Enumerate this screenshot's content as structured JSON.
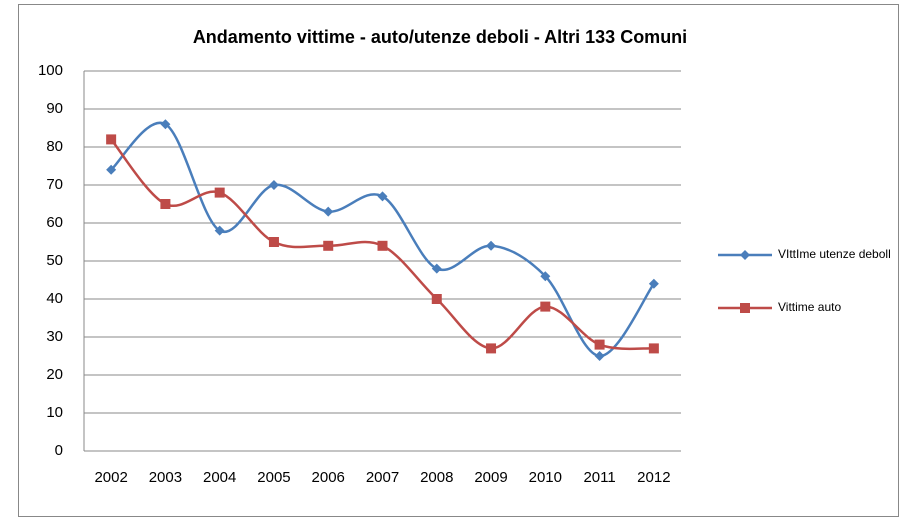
{
  "chart_data": {
    "type": "line",
    "title": "Andamento vittime - auto/utenze deboli - Altri 133 Comuni",
    "categories": [
      "2002",
      "2003",
      "2004",
      "2005",
      "2006",
      "2007",
      "2008",
      "2009",
      "2010",
      "2011",
      "2012"
    ],
    "series": [
      {
        "name": "VIttIme utenze deboll",
        "color": "#4a7ebb",
        "marker": "diamond",
        "values": [
          74,
          86,
          58,
          70,
          63,
          67,
          48,
          54,
          46,
          25,
          44
        ]
      },
      {
        "name": "Vittime auto",
        "color": "#be4b48",
        "marker": "square",
        "values": [
          82,
          65,
          68,
          55,
          54,
          54,
          40,
          27,
          38,
          28,
          27
        ]
      }
    ],
    "ylim": [
      0,
      100
    ],
    "yticks": [
      0,
      10,
      20,
      30,
      40,
      50,
      60,
      70,
      80,
      90,
      100
    ],
    "grid": true,
    "smooth": true,
    "legend": "right"
  }
}
